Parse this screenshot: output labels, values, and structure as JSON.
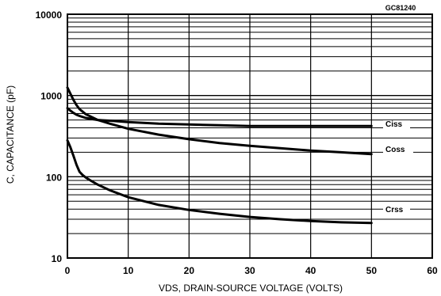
{
  "chart_data": {
    "type": "line",
    "figure_id": "GC81240",
    "xlabel": "VDS, DRAIN-SOURCE VOLTAGE (VOLTS)",
    "ylabel": "C, CAPACITANCE (pF)",
    "xlim": [
      0,
      60
    ],
    "ylim": [
      10,
      10000
    ],
    "yscale": "log",
    "grid": true,
    "x_ticks": [
      "0",
      "10",
      "20",
      "30",
      "40",
      "50",
      "60"
    ],
    "y_ticks": [
      "10",
      "100",
      "1000",
      "10000"
    ],
    "series": [
      {
        "name": "Ciss",
        "x": [
          0,
          0.5,
          1,
          1.5,
          2,
          3,
          5,
          7,
          10,
          15,
          20,
          25,
          30,
          35,
          40,
          45,
          50
        ],
        "y": [
          700,
          650,
          610,
          580,
          560,
          530,
          500,
          490,
          470,
          450,
          440,
          430,
          420,
          420,
          420,
          420,
          420
        ]
      },
      {
        "name": "Coss",
        "x": [
          0,
          0.5,
          1,
          1.5,
          2,
          3,
          5,
          7,
          10,
          15,
          20,
          25,
          30,
          35,
          40,
          45,
          50
        ],
        "y": [
          1250,
          1050,
          880,
          760,
          680,
          590,
          500,
          450,
          390,
          330,
          290,
          260,
          240,
          225,
          210,
          200,
          190
        ]
      },
      {
        "name": "Crss",
        "x": [
          0,
          0.5,
          1,
          1.5,
          2,
          2.5,
          3,
          4,
          5,
          7,
          10,
          15,
          20,
          25,
          30,
          35,
          40,
          45,
          50
        ],
        "y": [
          280,
          230,
          180,
          140,
          115,
          105,
          98,
          88,
          80,
          68,
          56,
          45,
          39,
          35,
          32,
          30,
          28.5,
          27.5,
          27
        ]
      }
    ]
  }
}
